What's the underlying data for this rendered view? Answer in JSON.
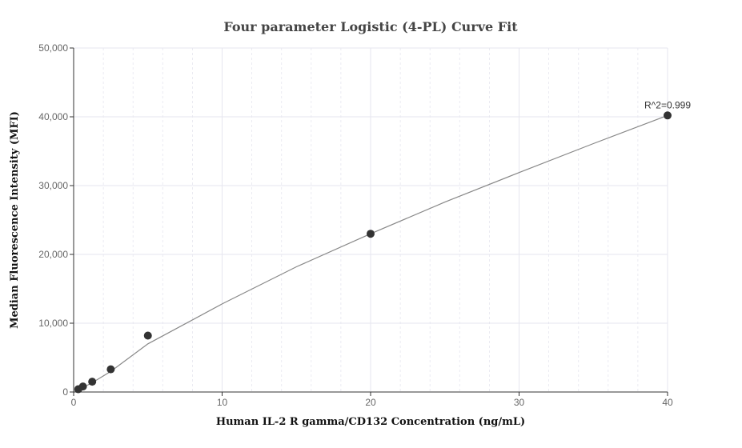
{
  "chart_data": {
    "type": "scatter",
    "title": "Four parameter Logistic (4-PL) Curve Fit",
    "xlabel": "Human IL-2 R gamma/CD132 Concentration (ng/mL)",
    "ylabel": "Median Fluorescence Intensity (MFI)",
    "xlim": [
      0,
      40
    ],
    "ylim": [
      0,
      50000
    ],
    "x_ticks": [
      0,
      10,
      20,
      30,
      40
    ],
    "x_tick_labels": [
      "0",
      "10",
      "20",
      "30",
      "40"
    ],
    "y_ticks": [
      0,
      10000,
      20000,
      30000,
      40000,
      50000
    ],
    "y_tick_labels": [
      "0",
      "10,000",
      "20,000",
      "30,000",
      "40,000",
      "50,000"
    ],
    "grid": true,
    "series": [
      {
        "points": [
          {
            "x": 0.3125,
            "y": 400
          },
          {
            "x": 0.625,
            "y": 800
          },
          {
            "x": 1.25,
            "y": 1500
          },
          {
            "x": 2.5,
            "y": 3300
          },
          {
            "x": 5,
            "y": 8200
          },
          {
            "x": 20,
            "y": 23000
          },
          {
            "x": 40,
            "y": 40200
          }
        ]
      }
    ],
    "fit_curve": {
      "x": [
        0.3125,
        0.625,
        1.25,
        2.5,
        5,
        10,
        15,
        20,
        25,
        30,
        35,
        40
      ],
      "y": [
        300,
        650,
        1350,
        3000,
        7000,
        12800,
        18200,
        23000,
        27600,
        31900,
        36100,
        40200
      ]
    },
    "annotation": "R^2=0.999",
    "colors": {
      "point": "#333333",
      "curve": "#888888",
      "grid": "#e6e6ef",
      "axis": "#333333"
    }
  }
}
